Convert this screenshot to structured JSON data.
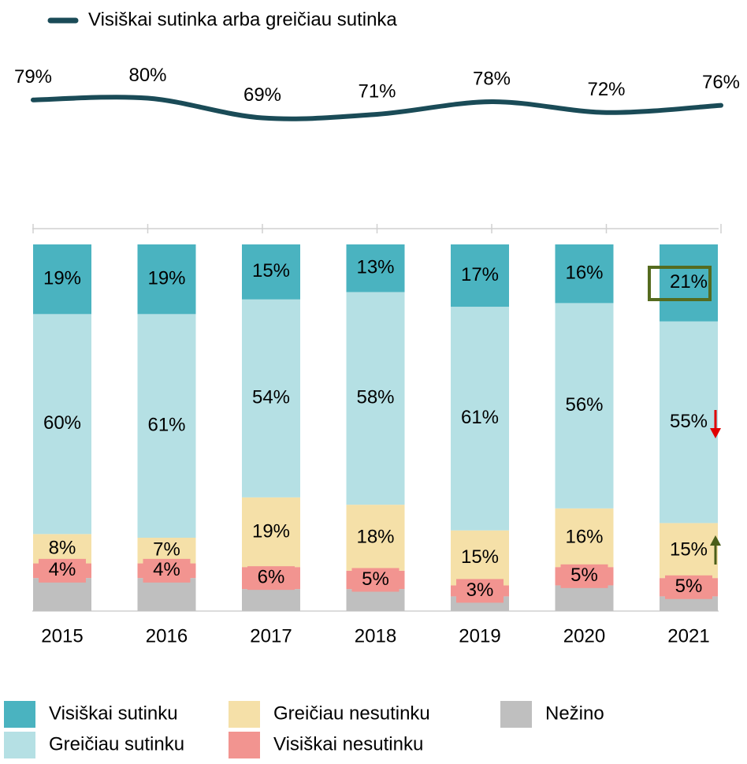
{
  "chart_data": {
    "type": "bar",
    "stacked": true,
    "categories": [
      "2015",
      "2016",
      "2017",
      "2018",
      "2019",
      "2020",
      "2021"
    ],
    "ylim": [
      0,
      100
    ],
    "y2lim": [
      60,
      100
    ],
    "series": [
      {
        "name": "Nežino",
        "color": "#bfbfbf",
        "values": [
          9,
          9,
          6,
          6,
          4,
          7,
          4
        ]
      },
      {
        "name": "Visiškai nesutinku",
        "color": "#f29490",
        "values": [
          4,
          4,
          6,
          5,
          3,
          5,
          5
        ],
        "value_labels": [
          "4%",
          "4%",
          "6%",
          "5%",
          "3%",
          "5%",
          "5%"
        ]
      },
      {
        "name": "Greičiau nesutinku",
        "color": "#f5e0a8",
        "values": [
          8,
          7,
          19,
          18,
          15,
          16,
          15
        ],
        "value_labels": [
          "8%",
          "7%",
          "19%",
          "18%",
          "15%",
          "16%",
          "15%"
        ]
      },
      {
        "name": "Greičiau sutinku",
        "color": "#b5e0e4",
        "values": [
          60,
          61,
          54,
          58,
          61,
          56,
          55
        ],
        "value_labels": [
          "60%",
          "61%",
          "54%",
          "58%",
          "61%",
          "56%",
          "55%"
        ]
      },
      {
        "name": "Visiškai sutinku",
        "color": "#4ab3c0",
        "values": [
          19,
          19,
          15,
          13,
          17,
          16,
          21
        ],
        "value_labels": [
          "19%",
          "19%",
          "15%",
          "13%",
          "17%",
          "16%",
          "21%"
        ]
      },
      {
        "name": "Visiškai sutinka arba greičiau sutinka",
        "type": "line",
        "axis": "y2",
        "color": "#1a4b57",
        "values": [
          79,
          80,
          69,
          71,
          78,
          72,
          76
        ],
        "value_labels": [
          "79%",
          "80%",
          "69%",
          "71%",
          "78%",
          "72%",
          "76%"
        ]
      }
    ]
  }
}
